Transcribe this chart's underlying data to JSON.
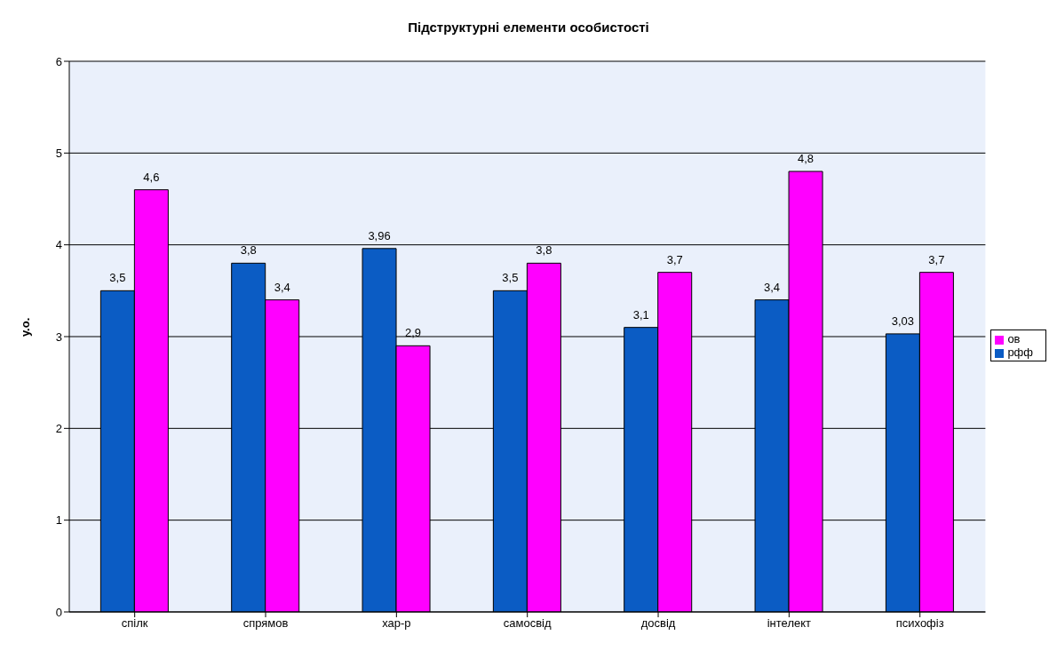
{
  "chart_data": {
    "type": "bar",
    "title": "Підструктурні елементи особистості",
    "ylabel": "у.о.",
    "categories": [
      "спілк",
      "спрямов",
      "хар-р",
      "самосвід",
      "досвід",
      "інтелект",
      "психофіз"
    ],
    "series": [
      {
        "name": "рфф",
        "color": "#0b5cc4",
        "values": [
          3.5,
          3.8,
          3.96,
          3.5,
          3.1,
          3.4,
          3.03
        ],
        "value_labels": [
          "3,5",
          "3,8",
          "3,96",
          "3,5",
          "3,1",
          "3,4",
          "3,03"
        ]
      },
      {
        "name": "ов",
        "color": "#ff00ff",
        "values": [
          4.6,
          3.4,
          2.9,
          3.8,
          3.7,
          4.8,
          3.7
        ],
        "value_labels": [
          "4,6",
          "3,4",
          "2,9",
          "3,8",
          "3,7",
          "4,8",
          "3,7"
        ]
      }
    ],
    "ylim": [
      0,
      6
    ],
    "yticks": [
      0,
      1,
      2,
      3,
      4,
      5,
      6
    ],
    "grid": "y",
    "legend": "right"
  }
}
